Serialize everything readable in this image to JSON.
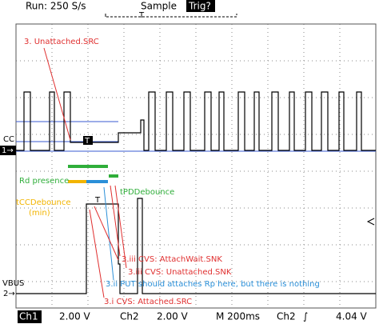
{
  "header": {
    "run": "Run: 250 S/s",
    "mode": "Sample",
    "trigger": "Trig?",
    "trigger_marker": "T"
  },
  "channels": {
    "ch1_label": "CC",
    "ch1_marker": "1→",
    "ch2_label": "VBUS",
    "ch2_marker": "2→"
  },
  "markers": {
    "cc_marker": "T",
    "vbus_marker": "T"
  },
  "annotations": {
    "unattached_src": "3. Unattached.SRC",
    "rd_presence": "Rd presence",
    "tpd_debounce": "tPDDebounce",
    "tcc_debounce": "tCCDebounce",
    "tcc_min": "(min)",
    "attachwait_snk": "3.iii CVS: AttachWait.SNK",
    "unattached_snk": "3.iii CVS: Unattached.SNK",
    "put_rp": "3.ii PUT should attaches Rp here, but there is nothing",
    "attached_src": "3.i CVS: Attached.SRC"
  },
  "footer": {
    "ch1": "Ch1",
    "ch1_scale": "2.00 V",
    "ch2": "Ch2",
    "ch2_scale": "2.00 V",
    "time": "M 200ms",
    "trig_source": "Ch2",
    "trig_slope": "∫",
    "trig_level": "4.04 V"
  }
}
